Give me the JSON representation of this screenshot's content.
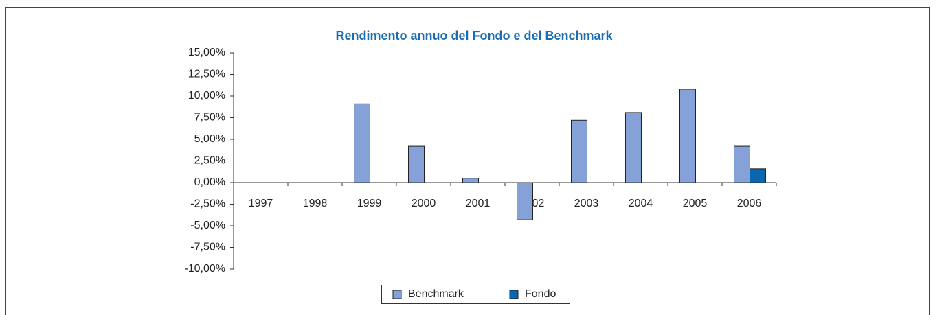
{
  "chart_data": {
    "type": "bar",
    "title": "Rendimento annuo del Fondo e del Benchmark",
    "categories": [
      "1997",
      "1998",
      "1999",
      "2000",
      "2001",
      "2002",
      "2003",
      "2004",
      "2005",
      "2006"
    ],
    "series": [
      {
        "name": "Benchmark",
        "color": "#86a1d8",
        "values": [
          null,
          null,
          9.1,
          4.2,
          0.5,
          -4.3,
          7.2,
          8.1,
          10.8,
          4.2
        ]
      },
      {
        "name": "Fondo",
        "color": "#0b66b0",
        "values": [
          null,
          null,
          null,
          null,
          null,
          null,
          null,
          null,
          null,
          1.6
        ]
      }
    ],
    "ylim": [
      -10,
      15
    ],
    "yticks": [
      {
        "value": -10,
        "label": "-10,00%"
      },
      {
        "value": -7.5,
        "label": "-7,50%"
      },
      {
        "value": -5,
        "label": "-5,00%"
      },
      {
        "value": -2.5,
        "label": "-2,50%"
      },
      {
        "value": 0,
        "label": "0,00%"
      },
      {
        "value": 2.5,
        "label": "2,50%"
      },
      {
        "value": 5,
        "label": "5,00%"
      },
      {
        "value": 7.5,
        "label": "7,50%"
      },
      {
        "value": 10,
        "label": "10,00%"
      },
      {
        "value": 12.5,
        "label": "12,50%"
      },
      {
        "value": 15,
        "label": "15,00%"
      }
    ],
    "grid": false,
    "legend": "bottom"
  }
}
